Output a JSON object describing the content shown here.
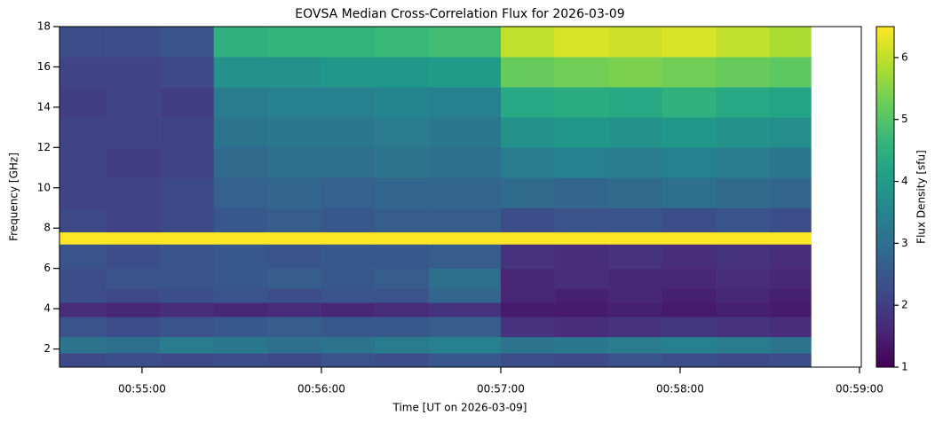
{
  "chart_data": {
    "type": "heatmap",
    "title": "EOVSA Median Cross-Correlation Flux for 2026-03-09",
    "x_label": "Time [UT on 2026-03-09]",
    "y_label": "Frequency [GHz]",
    "colorbar_label": "Flux Density [sfu]",
    "xlim": [
      54.54,
      59.01
    ],
    "xticks": [
      {
        "value": 55,
        "label": "00:55:00"
      },
      {
        "value": 56,
        "label": "00:56:00"
      },
      {
        "value": 57,
        "label": "00:57:00"
      },
      {
        "value": 58,
        "label": "00:58:00"
      },
      {
        "value": 59,
        "label": "00:59:00"
      }
    ],
    "ylim": [
      1.1,
      18
    ],
    "yticks": [
      2,
      4,
      6,
      8,
      10,
      12,
      14,
      16,
      18
    ],
    "clim": [
      1,
      6.5
    ],
    "cticks": [
      1,
      2,
      3,
      4,
      5,
      6
    ],
    "colormap": "viridis",
    "xbins": [
      54.54,
      54.8,
      55.1,
      55.4,
      55.7,
      56.0,
      56.3,
      56.6,
      57.0,
      57.3,
      57.6,
      57.9,
      58.2,
      58.5,
      58.73
    ],
    "ybins": [
      1.1,
      1.8,
      2.6,
      3.6,
      4.3,
      5,
      6,
      7.2,
      7.8,
      9,
      10.5,
      12,
      13.5,
      15,
      16.5,
      18
    ],
    "z": [
      [
        2.2,
        2.3,
        2.2,
        2.3,
        2.2,
        2.4,
        2.3,
        2.5,
        2.3,
        2.2,
        2.4,
        2.3,
        2.2,
        2.3
      ],
      [
        3.1,
        3.0,
        3.3,
        3.2,
        3.0,
        3.1,
        3.3,
        3.4,
        3.1,
        3.2,
        3.3,
        3.4,
        3.3,
        3.1
      ],
      [
        2.4,
        2.3,
        2.4,
        2.5,
        2.6,
        2.5,
        2.5,
        2.6,
        1.8,
        1.7,
        1.8,
        1.9,
        1.8,
        1.7
      ],
      [
        1.7,
        1.6,
        1.7,
        1.6,
        1.7,
        1.6,
        1.7,
        1.8,
        1.4,
        1.4,
        1.5,
        1.4,
        1.5,
        1.4
      ],
      [
        2.3,
        2.2,
        2.3,
        2.4,
        2.3,
        2.4,
        2.4,
        2.8,
        1.6,
        1.5,
        1.6,
        1.5,
        1.6,
        1.5
      ],
      [
        2.3,
        2.4,
        2.4,
        2.5,
        2.6,
        2.5,
        2.6,
        3.0,
        1.6,
        1.7,
        1.6,
        1.6,
        1.7,
        1.6
      ],
      [
        2.4,
        2.3,
        2.4,
        2.5,
        2.4,
        2.5,
        2.5,
        2.6,
        1.8,
        1.7,
        1.8,
        1.7,
        1.8,
        1.7
      ],
      [
        6.5,
        6.5,
        6.5,
        6.5,
        6.5,
        6.5,
        6.5,
        6.5,
        6.5,
        6.5,
        6.5,
        6.5,
        6.5,
        6.5
      ],
      [
        2.2,
        2.1,
        2.2,
        2.5,
        2.6,
        2.5,
        2.6,
        2.6,
        2.3,
        2.4,
        2.4,
        2.3,
        2.4,
        2.3
      ],
      [
        2.1,
        2.1,
        2.2,
        2.7,
        2.8,
        2.7,
        2.8,
        2.8,
        2.9,
        2.8,
        2.9,
        3.0,
        2.9,
        2.8
      ],
      [
        2.1,
        2.0,
        2.1,
        2.9,
        3.0,
        3.0,
        3.1,
        3.0,
        3.3,
        3.4,
        3.3,
        3.4,
        3.3,
        3.2
      ],
      [
        2.1,
        2.1,
        2.1,
        3.1,
        3.2,
        3.2,
        3.3,
        3.2,
        3.8,
        3.9,
        3.8,
        3.9,
        3.8,
        3.7
      ],
      [
        2.0,
        2.1,
        2.0,
        3.3,
        3.4,
        3.4,
        3.5,
        3.4,
        4.3,
        4.4,
        4.3,
        4.5,
        4.3,
        4.2
      ],
      [
        2.1,
        2.1,
        2.2,
        3.8,
        3.8,
        3.9,
        3.9,
        4.0,
        5.2,
        5.3,
        5.4,
        5.3,
        5.2,
        5.1
      ],
      [
        2.3,
        2.3,
        2.4,
        4.5,
        4.6,
        4.6,
        4.7,
        4.8,
        6.0,
        6.2,
        6.1,
        6.2,
        6.0,
        5.8
      ]
    ]
  }
}
